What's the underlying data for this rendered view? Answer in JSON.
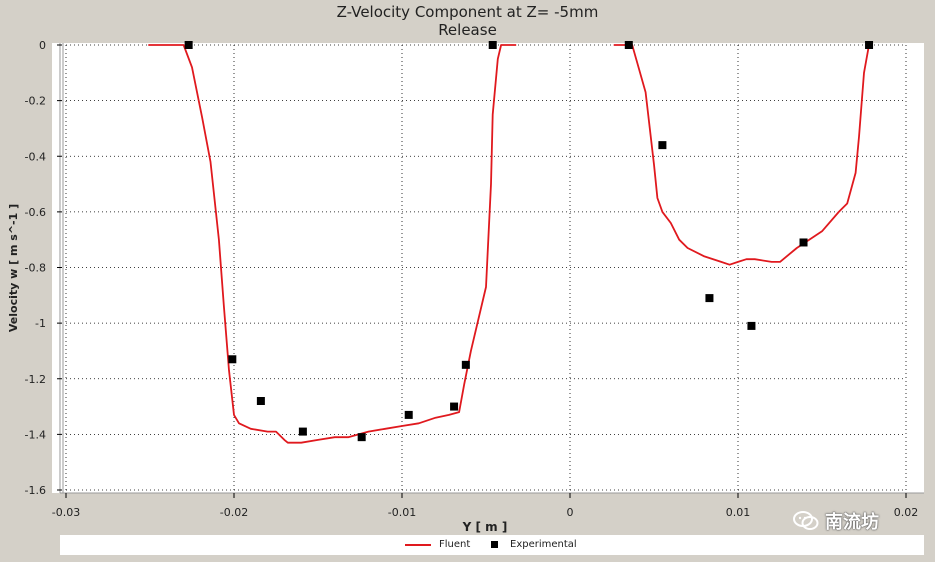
{
  "chart_data": {
    "type": "line",
    "title": "Z-Velocity Component at Z= -5mm",
    "subtitle": "Release",
    "xlabel": "Y [ m ]",
    "ylabel": "Velocity w [ m s^-1 ]",
    "xlim": [
      -0.03,
      0.02
    ],
    "ylim": [
      -1.6,
      0
    ],
    "xticks": [
      -0.03,
      -0.02,
      -0.01,
      0,
      0.01,
      0.02
    ],
    "xtick_labels": [
      "-0.03",
      "-0.02",
      "-0.01",
      "0",
      "0.01",
      "0.02"
    ],
    "yticks": [
      0,
      -0.2,
      -0.4,
      -0.6,
      -0.8,
      -1,
      -1.2,
      -1.4,
      -1.6
    ],
    "ytick_labels": [
      "0",
      "-0.2",
      "-0.4",
      "-0.6",
      "-0.8",
      "-1",
      "-1.2",
      "-1.4",
      "-1.6"
    ],
    "grid": true,
    "legend_placement": "bottom",
    "series": [
      {
        "name": "Fluent",
        "type": "line",
        "color": "#e0191e",
        "segments": [
          [
            [
              -0.0251,
              0
            ],
            [
              -0.023,
              0
            ],
            [
              -0.0225,
              -0.08
            ],
            [
              -0.0219,
              -0.26
            ],
            [
              -0.0214,
              -0.42
            ],
            [
              -0.0209,
              -0.7
            ],
            [
              -0.0206,
              -0.94
            ],
            [
              -0.0203,
              -1.17
            ],
            [
              -0.02,
              -1.33
            ],
            [
              -0.0197,
              -1.36
            ],
            [
              -0.019,
              -1.38
            ],
            [
              -0.018,
              -1.39
            ],
            [
              -0.0175,
              -1.39
            ],
            [
              -0.017,
              -1.42
            ],
            [
              -0.0168,
              -1.43
            ],
            [
              -0.016,
              -1.43
            ],
            [
              -0.015,
              -1.42
            ],
            [
              -0.014,
              -1.41
            ],
            [
              -0.0132,
              -1.41
            ],
            [
              -0.012,
              -1.39
            ],
            [
              -0.011,
              -1.38
            ],
            [
              -0.01,
              -1.37
            ],
            [
              -0.009,
              -1.36
            ],
            [
              -0.008,
              -1.34
            ],
            [
              -0.0072,
              -1.33
            ],
            [
              -0.0066,
              -1.32
            ],
            [
              -0.0063,
              -1.22
            ],
            [
              -0.0059,
              -1.1
            ],
            [
              -0.005,
              -0.87
            ],
            [
              -0.0047,
              -0.5
            ],
            [
              -0.0046,
              -0.25
            ],
            [
              -0.0043,
              -0.05
            ],
            [
              -0.0041,
              0
            ],
            [
              -0.0032,
              0
            ]
          ],
          [
            [
              0.0026,
              0
            ],
            [
              0.0037,
              0
            ],
            [
              0.0045,
              -0.17
            ],
            [
              0.005,
              -0.43
            ],
            [
              0.0052,
              -0.55
            ],
            [
              0.0055,
              -0.6
            ],
            [
              0.006,
              -0.64
            ],
            [
              0.0065,
              -0.7
            ],
            [
              0.007,
              -0.73
            ],
            [
              0.008,
              -0.76
            ],
            [
              0.009,
              -0.78
            ],
            [
              0.0095,
              -0.79
            ],
            [
              0.01,
              -0.78
            ],
            [
              0.0105,
              -0.77
            ],
            [
              0.011,
              -0.77
            ],
            [
              0.012,
              -0.78
            ],
            [
              0.0125,
              -0.78
            ],
            [
              0.0135,
              -0.73
            ],
            [
              0.015,
              -0.67
            ],
            [
              0.016,
              -0.6
            ],
            [
              0.0165,
              -0.57
            ],
            [
              0.017,
              -0.46
            ],
            [
              0.0172,
              -0.33
            ],
            [
              0.0175,
              -0.1
            ],
            [
              0.0178,
              0
            ]
          ]
        ]
      },
      {
        "name": "Experimental",
        "type": "scatter",
        "color": "#000000",
        "points": [
          [
            -0.0227,
            0
          ],
          [
            -0.0201,
            -1.13
          ],
          [
            -0.0184,
            -1.28
          ],
          [
            -0.0159,
            -1.39
          ],
          [
            -0.0124,
            -1.41
          ],
          [
            -0.0096,
            -1.33
          ],
          [
            -0.0069,
            -1.3
          ],
          [
            -0.0062,
            -1.15
          ],
          [
            -0.0046,
            0
          ],
          [
            0.0035,
            0
          ],
          [
            0.0055,
            -0.36
          ],
          [
            0.0083,
            -0.91
          ],
          [
            0.0108,
            -1.01
          ],
          [
            0.0139,
            -0.71
          ],
          [
            0.0178,
            0
          ]
        ]
      }
    ]
  },
  "watermark": {
    "text": "南流坊",
    "icon": "wechat-icon"
  }
}
